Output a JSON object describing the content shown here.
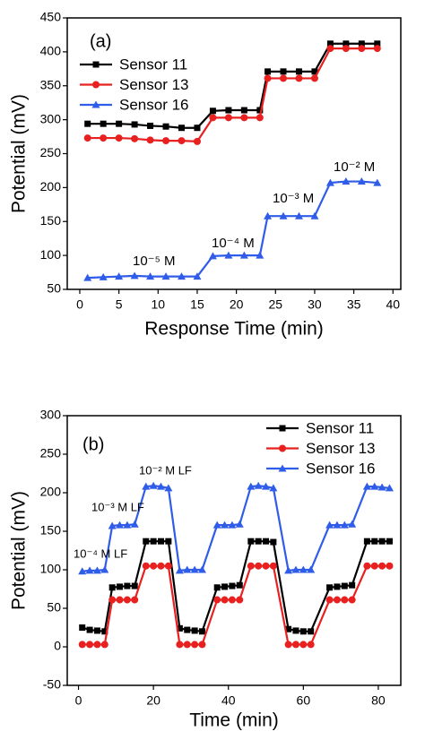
{
  "chart_data": [
    {
      "type": "line",
      "annotations": [
        "(a)",
        "10⁻⁵ M",
        "10⁻⁴ M",
        "10⁻³ M",
        "10⁻² M"
      ],
      "xlabel": "Response Time (min)",
      "ylabel": "Potential (mV)",
      "x": [
        1,
        3,
        5,
        7,
        9,
        11,
        13,
        15,
        17,
        19,
        21,
        23,
        24,
        26,
        28,
        30,
        32,
        34,
        36,
        38
      ],
      "series": [
        {
          "name": "Sensor 11",
          "color": "#000000",
          "marker": "square",
          "values": [
            294,
            294,
            294,
            293,
            291,
            290,
            288,
            288,
            313,
            314,
            314,
            314,
            371,
            371,
            371,
            371,
            412,
            412,
            412,
            412
          ]
        },
        {
          "name": "Sensor 13",
          "color": "#e8201f",
          "marker": "circle",
          "values": [
            273,
            273,
            273,
            272,
            270,
            269,
            269,
            268,
            303,
            303,
            303,
            303,
            361,
            361,
            361,
            361,
            405,
            405,
            405,
            405
          ]
        },
        {
          "name": "Sensor 16",
          "color": "#2f5ce8",
          "marker": "triangle",
          "values": [
            67,
            68,
            69,
            70,
            69,
            69,
            69,
            69,
            99,
            100,
            100,
            100,
            158,
            158,
            158,
            158,
            207,
            209,
            209,
            207
          ]
        }
      ],
      "xlim": [
        -1.6,
        41
      ],
      "xticks": [
        0,
        5,
        10,
        15,
        20,
        25,
        30,
        35,
        40
      ],
      "ylim": [
        50,
        450
      ],
      "yticks": [
        50,
        100,
        150,
        200,
        250,
        300,
        350,
        400,
        450
      ],
      "legend": "upper left"
    },
    {
      "type": "line",
      "annotations": [
        "(b)",
        "10⁻² M LF",
        "10⁻³ M LF",
        "10⁻⁴ M LF"
      ],
      "xlabel": "Time (min)",
      "ylabel": "Potential (mV)",
      "x": [
        1,
        3,
        5,
        7,
        9,
        11,
        13,
        15,
        18,
        20,
        22,
        24,
        27,
        29,
        31,
        33,
        37,
        39,
        41,
        43,
        46,
        48,
        50,
        52,
        56,
        58,
        60,
        62,
        67,
        69,
        71,
        73,
        77,
        79,
        81,
        83
      ],
      "series": [
        {
          "name": "Sensor 11",
          "color": "#000000",
          "marker": "square",
          "values": [
            25,
            22,
            21,
            20,
            77,
            78,
            79,
            79,
            137,
            137,
            137,
            137,
            24,
            22,
            21,
            20,
            77,
            78,
            79,
            80,
            137,
            137,
            137,
            136,
            23,
            21,
            20,
            20,
            77,
            78,
            79,
            80,
            137,
            137,
            137,
            137
          ]
        },
        {
          "name": "Sensor 13",
          "color": "#e8201f",
          "marker": "circle",
          "values": [
            3,
            3,
            3,
            3,
            61,
            61,
            61,
            61,
            105,
            105,
            105,
            105,
            3,
            3,
            3,
            3,
            61,
            61,
            61,
            61,
            105,
            105,
            105,
            105,
            3,
            3,
            3,
            3,
            61,
            61,
            61,
            61,
            105,
            105,
            105,
            105
          ]
        },
        {
          "name": "Sensor 16",
          "color": "#2f5ce8",
          "marker": "triangle",
          "values": [
            98,
            99,
            99,
            100,
            157,
            158,
            158,
            159,
            208,
            209,
            208,
            206,
            99,
            100,
            100,
            100,
            158,
            158,
            158,
            159,
            208,
            209,
            208,
            206,
            99,
            100,
            100,
            100,
            158,
            158,
            158,
            159,
            208,
            208,
            207,
            206
          ]
        }
      ],
      "xlim": [
        -3,
        86
      ],
      "xticks": [
        0,
        20,
        40,
        60,
        80
      ],
      "ylim": [
        -50,
        300
      ],
      "yticks": [
        -50,
        0,
        50,
        100,
        150,
        200,
        250,
        300
      ],
      "legend": "upper right"
    }
  ]
}
